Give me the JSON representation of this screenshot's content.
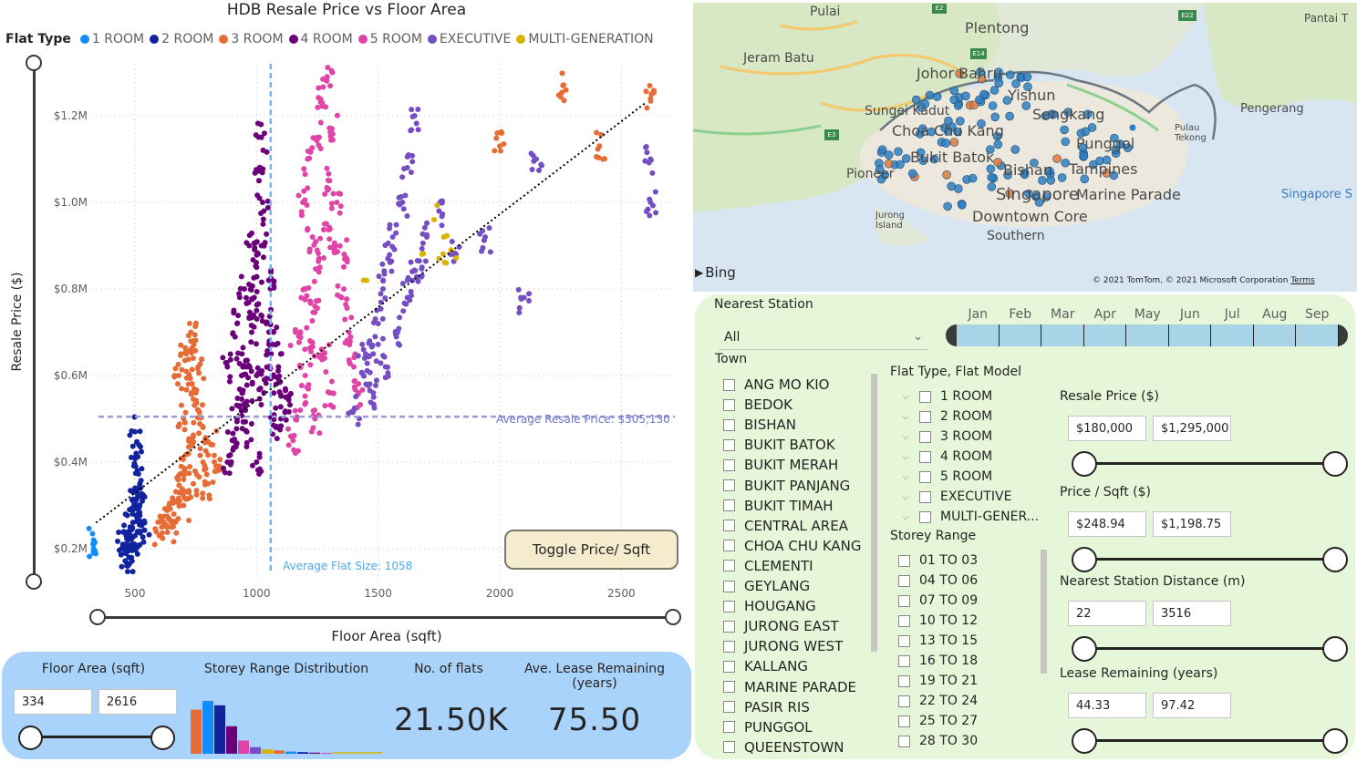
{
  "chart": {
    "title": "HDB Resale Price vs Floor Area",
    "legend_title": "Flat Type",
    "legend": [
      {
        "label": "1 ROOM",
        "color": "#118dff"
      },
      {
        "label": "2 ROOM",
        "color": "#12239e"
      },
      {
        "label": "3 ROOM",
        "color": "#e66c37"
      },
      {
        "label": "4 ROOM",
        "color": "#6b007b"
      },
      {
        "label": "5 ROOM",
        "color": "#e044a7"
      },
      {
        "label": "EXECUTIVE",
        "color": "#744ec2"
      },
      {
        "label": "MULTI-GENERATION",
        "color": "#d9b300"
      }
    ],
    "xlabel": "Floor Area (sqft)",
    "ylabel": "Resale Price ($)",
    "avg_price_label": "Average Resale Price: $505,130",
    "avg_size_label": "Average Flat Size: 1058",
    "toggle_label": "Toggle Price/ Sqft"
  },
  "chart_data": {
    "type": "scatter",
    "title": "HDB Resale Price vs Floor Area",
    "xlabel": "Floor Area (sqft)",
    "ylabel": "Resale Price ($)",
    "xlim": [
      320,
      2720
    ],
    "ylim": [
      120000,
      1320000
    ],
    "x_ticks": [
      500,
      1000,
      1500,
      2000,
      2500
    ],
    "x_tick_labels": [
      "500",
      "1000",
      "1500",
      "2000",
      "2500"
    ],
    "y_ticks": [
      200000,
      400000,
      600000,
      800000,
      1000000,
      1200000
    ],
    "y_tick_labels": [
      "$0.2M",
      "$0.4M",
      "$0.6M",
      "$0.8M",
      "$1.0M",
      "$1.2M"
    ],
    "grid": true,
    "legend_position": "top",
    "reference_lines": {
      "avg_price": 505130,
      "avg_size": 1058
    },
    "trend_line": [
      [
        340,
        260000
      ],
      [
        2600,
        1230000
      ]
    ],
    "series": [
      {
        "name": "1 ROOM",
        "color": "#118dff",
        "points": [
          [
            330,
            190000
          ],
          [
            330,
            200000
          ],
          [
            330,
            210000
          ],
          [
            330,
            220000
          ],
          [
            335,
            195000
          ],
          [
            335,
            215000
          ]
        ]
      },
      {
        "name": "2 ROOM",
        "color": "#12239e",
        "points": [
          [
            460,
            190000
          ],
          [
            470,
            220000
          ],
          [
            480,
            250000
          ],
          [
            490,
            200000
          ],
          [
            500,
            230000
          ],
          [
            500,
            300000
          ],
          [
            510,
            270000
          ],
          [
            520,
            240000
          ],
          [
            520,
            350000
          ],
          [
            530,
            310000
          ],
          [
            450,
            210000
          ],
          [
            490,
            280000
          ],
          [
            505,
            420000
          ],
          [
            500,
            470000
          ],
          [
            510,
            380000
          ],
          [
            540,
            260000
          ],
          [
            475,
            180000
          ]
        ]
      },
      {
        "name": "3 ROOM",
        "color": "#e66c37",
        "points": [
          [
            600,
            230000
          ],
          [
            620,
            260000
          ],
          [
            640,
            300000
          ],
          [
            660,
            280000
          ],
          [
            680,
            330000
          ],
          [
            700,
            360000
          ],
          [
            720,
            420000
          ],
          [
            700,
            500000
          ],
          [
            740,
            460000
          ],
          [
            760,
            520000
          ],
          [
            680,
            600000
          ],
          [
            710,
            650000
          ],
          [
            730,
            700000
          ],
          [
            750,
            560000
          ],
          [
            780,
            400000
          ],
          [
            800,
            350000
          ],
          [
            650,
            250000
          ],
          [
            690,
            390000
          ],
          [
            720,
            580000
          ],
          [
            760,
            620000
          ],
          [
            740,
            680000
          ],
          [
            820,
            440000
          ],
          [
            840,
            380000
          ],
          [
            700,
            300000
          ],
          [
            740,
            350000
          ],
          [
            780,
            480000
          ],
          [
            2260,
            1270000
          ],
          [
            2410,
            1130000
          ],
          [
            2620,
            1240000
          ],
          [
            2000,
            1130000
          ]
        ]
      },
      {
        "name": "4 ROOM",
        "color": "#6b007b",
        "points": [
          [
            880,
            400000
          ],
          [
            900,
            450000
          ],
          [
            920,
            500000
          ],
          [
            940,
            560000
          ],
          [
            960,
            620000
          ],
          [
            980,
            700000
          ],
          [
            1000,
            750000
          ],
          [
            1000,
            850000
          ],
          [
            1020,
            900000
          ],
          [
            1030,
            980000
          ],
          [
            1010,
            1050000
          ],
          [
            1020,
            1150000
          ],
          [
            950,
            800000
          ],
          [
            970,
            900000
          ],
          [
            990,
            780000
          ],
          [
            1040,
            720000
          ],
          [
            1060,
            650000
          ],
          [
            1080,
            580000
          ],
          [
            1100,
            500000
          ],
          [
            1000,
            400000
          ],
          [
            960,
            470000
          ],
          [
            940,
            650000
          ],
          [
            920,
            720000
          ],
          [
            1050,
            820000
          ],
          [
            1070,
            700000
          ],
          [
            1090,
            620000
          ],
          [
            1120,
            550000
          ],
          [
            880,
            620000
          ],
          [
            1000,
            600000
          ],
          [
            1030,
            560000
          ],
          [
            1080,
            480000
          ],
          [
            960,
            540000
          ]
        ]
      },
      {
        "name": "5 ROOM",
        "color": "#e044a7",
        "points": [
          [
            1150,
            450000
          ],
          [
            1180,
            520000
          ],
          [
            1200,
            600000
          ],
          [
            1220,
            680000
          ],
          [
            1240,
            760000
          ],
          [
            1260,
            850000
          ],
          [
            1280,
            950000
          ],
          [
            1300,
            1050000
          ],
          [
            1250,
            1150000
          ],
          [
            1270,
            1230000
          ],
          [
            1290,
            1290000
          ],
          [
            1310,
            1170000
          ],
          [
            1320,
            900000
          ],
          [
            1350,
            780000
          ],
          [
            1380,
            700000
          ],
          [
            1400,
            620000
          ],
          [
            1420,
            560000
          ],
          [
            1200,
            800000
          ],
          [
            1230,
            920000
          ],
          [
            1160,
            700000
          ],
          [
            1190,
            1000000
          ],
          [
            1210,
            1100000
          ],
          [
            1330,
            1000000
          ],
          [
            1360,
            880000
          ],
          [
            1280,
            640000
          ],
          [
            1240,
            500000
          ],
          [
            1300,
            560000
          ]
        ]
      },
      {
        "name": "EXECUTIVE",
        "color": "#744ec2",
        "points": [
          [
            1400,
            520000
          ],
          [
            1450,
            580000
          ],
          [
            1480,
            650000
          ],
          [
            1500,
            720000
          ],
          [
            1520,
            800000
          ],
          [
            1540,
            870000
          ],
          [
            1560,
            920000
          ],
          [
            1600,
            1000000
          ],
          [
            1620,
            1080000
          ],
          [
            1650,
            1200000
          ],
          [
            1580,
            700000
          ],
          [
            1620,
            780000
          ],
          [
            1680,
            850000
          ],
          [
            1700,
            920000
          ],
          [
            1750,
            980000
          ],
          [
            1820,
            880000
          ],
          [
            2100,
            780000
          ],
          [
            2150,
            1100000
          ],
          [
            2620,
            1100000
          ],
          [
            2620,
            1000000
          ],
          [
            1940,
            920000
          ],
          [
            1440,
            660000
          ],
          [
            1480,
            560000
          ],
          [
            1530,
            620000
          ],
          [
            1640,
            840000
          ]
        ]
      },
      {
        "name": "MULTI-GENERATION",
        "color": "#d9b300",
        "points": [
          [
            1730,
            960000
          ],
          [
            1750,
            870000
          ],
          [
            1770,
            920000
          ],
          [
            1780,
            860000
          ],
          [
            1800,
            890000
          ],
          [
            1680,
            880000
          ],
          [
            1440,
            820000
          ]
        ]
      }
    ]
  },
  "floor_area_filter": {
    "label": "Floor Area (sqft)",
    "min": "334",
    "max": "2616"
  },
  "storey_dist": {
    "label": "Storey Range Distribution",
    "values": [
      40,
      48,
      44,
      25,
      12,
      6,
      4,
      3,
      2,
      1.5,
      1,
      0.8
    ],
    "colors": [
      "#e66c37",
      "#118dff",
      "#12239e",
      "#6b007b",
      "#e044a7",
      "#744ec2",
      "#d9b300",
      "#e66c37",
      "#118dff",
      "#12239e",
      "#6b007b",
      "#e044a7"
    ]
  },
  "flats_count": {
    "label": "No. of flats",
    "value": "21.50K"
  },
  "lease_avg": {
    "label": "Ave. Lease Remaining (years)",
    "value": "75.50"
  },
  "map": {
    "labels": [
      "Pulai",
      "Plentong",
      "Pantai T",
      "Jeram Batu",
      "Johor Bahru",
      "Yishun",
      "Sungei Kadut",
      "Choa Chu Kang",
      "Sengkang",
      "Pulau Tekong",
      "Pengerang",
      "Pioneer",
      "Bukit Batok",
      "Punggol",
      "Tampines",
      "Bishan",
      "Jurong Island",
      "Singapore",
      "Marine Parade",
      "Singapore S",
      "Downtown Core",
      "Southern"
    ],
    "bing": "Bing",
    "copyright": "© 2021 TomTom, © 2021 Microsoft Corporation",
    "terms": "Terms",
    "roads": [
      "E2",
      "E22",
      "E14",
      "E3"
    ]
  },
  "nearest_station": {
    "label": "Nearest Station",
    "value": "All"
  },
  "months": [
    "Jan",
    "Feb",
    "Mar",
    "Apr",
    "May",
    "Jun",
    "Jul",
    "Aug",
    "Sep"
  ],
  "town": {
    "label": "Town",
    "items": [
      "ANG MO KIO",
      "BEDOK",
      "BISHAN",
      "BUKIT BATOK",
      "BUKIT MERAH",
      "BUKIT PANJANG",
      "BUKIT TIMAH",
      "CENTRAL AREA",
      "CHOA CHU KANG",
      "CLEMENTI",
      "GEYLANG",
      "HOUGANG",
      "JURONG EAST",
      "JURONG WEST",
      "KALLANG",
      "MARINE PARADE",
      "PASIR RIS",
      "PUNGGOL",
      "QUEENSTOWN"
    ]
  },
  "flat_type": {
    "label": "Flat Type, Flat Model",
    "items": [
      "1 ROOM",
      "2 ROOM",
      "3 ROOM",
      "4 ROOM",
      "5 ROOM",
      "EXECUTIVE",
      "MULTI-GENER..."
    ]
  },
  "storey": {
    "label": "Storey Range",
    "items": [
      "01 TO 03",
      "04 TO 06",
      "07 TO 09",
      "10 TO 12",
      "13 TO 15",
      "16 TO 18",
      "19 TO 21",
      "22 TO 24",
      "25 TO 27",
      "28 TO 30"
    ]
  },
  "resale_price": {
    "label": "Resale Price ($)",
    "min": "$180,000",
    "max": "$1,295,000"
  },
  "price_sqft": {
    "label": "Price / Sqft ($)",
    "min": "$248.94",
    "max": "$1,198.75"
  },
  "station_dist": {
    "label": "Nearest Station Distance (m)",
    "min": "22",
    "max": "3516"
  },
  "lease": {
    "label": "Lease Remaining (years)",
    "min": "44.33",
    "max": "97.42"
  }
}
